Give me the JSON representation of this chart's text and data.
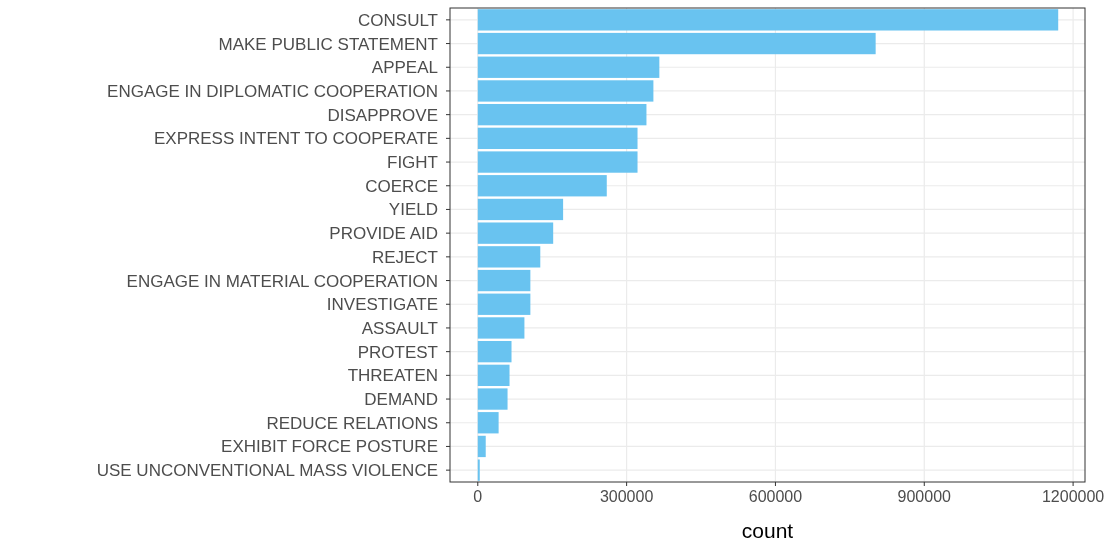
{
  "chart_data": {
    "type": "bar",
    "orientation": "horizontal",
    "xlabel": "count",
    "categories": [
      "CONSULT",
      "MAKE PUBLIC STATEMENT",
      "APPEAL",
      "ENGAGE IN DIPLOMATIC COOPERATION",
      "DISAPPROVE",
      "EXPRESS INTENT TO COOPERATE",
      "FIGHT",
      "COERCE",
      "YIELD",
      "PROVIDE AID",
      "REJECT",
      "ENGAGE IN MATERIAL COOPERATION",
      "INVESTIGATE",
      "ASSAULT",
      "PROTEST",
      "THREATEN",
      "DEMAND",
      "REDUCE RELATIONS",
      "EXHIBIT FORCE POSTURE",
      "USE UNCONVENTIONAL MASS VIOLENCE"
    ],
    "values": [
      1170000,
      802000,
      366000,
      354000,
      340000,
      322000,
      322000,
      260000,
      172000,
      152000,
      126000,
      106000,
      106000,
      94000,
      68000,
      64000,
      60000,
      42000,
      16000,
      4000
    ],
    "color": "#69c3f0",
    "xlim": [
      -56000,
      1224000
    ],
    "xticks": [
      0,
      300000,
      600000,
      900000,
      1200000
    ],
    "grid": true
  }
}
